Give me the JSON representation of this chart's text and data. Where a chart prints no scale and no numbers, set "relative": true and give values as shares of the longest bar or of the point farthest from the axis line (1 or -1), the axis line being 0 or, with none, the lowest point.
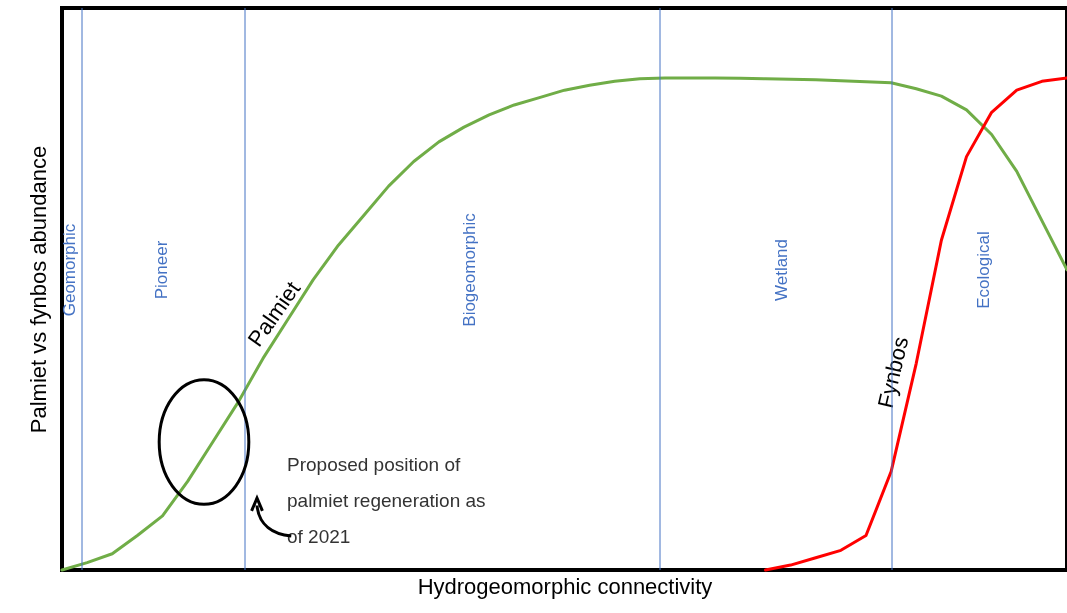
{
  "chart_data": {
    "type": "line",
    "relative": true,
    "xlabel": "Hydrogeomorphic connectivity",
    "ylabel": "Palmiet vs fynbos abundance",
    "tick_labels": false,
    "grid": false,
    "marker": "none",
    "line_style": "solid",
    "categories": [
      null,
      null,
      null,
      null,
      null,
      null,
      null,
      null,
      null,
      null,
      null,
      null,
      null,
      null,
      null,
      null,
      null,
      null,
      null,
      null,
      null,
      null,
      null,
      null,
      null,
      null,
      null,
      null,
      null,
      null,
      null,
      null,
      null,
      null,
      null,
      null,
      null,
      null,
      null,
      null,
      null
    ],
    "series": [
      {
        "name": "Palmiet",
        "color": "#70ad47",
        "values": [
          0,
          0.015,
          0.033,
          0.07,
          0.11,
          0.18,
          0.26,
          0.34,
          0.43,
          0.51,
          0.59,
          0.66,
          0.72,
          0.78,
          0.83,
          0.87,
          0.9,
          0.925,
          0.945,
          0.96,
          0.975,
          0.985,
          0.993,
          0.998,
          1,
          1,
          1,
          0.999,
          0.998,
          0.997,
          0.996,
          0.994,
          0.992,
          0.99,
          0.978,
          0.963,
          0.935,
          0.885,
          0.81,
          0.71,
          0.61
        ]
      },
      {
        "name": "Fynbos",
        "color": "#ff0000",
        "values": [
          null,
          null,
          null,
          null,
          null,
          null,
          null,
          null,
          null,
          null,
          null,
          null,
          null,
          null,
          null,
          null,
          null,
          null,
          null,
          null,
          null,
          null,
          null,
          null,
          null,
          null,
          null,
          null,
          0,
          0.01,
          0.025,
          0.04,
          0.07,
          0.2,
          0.42,
          0.67,
          0.84,
          0.93,
          0.975,
          0.993,
          1
        ]
      }
    ],
    "annotations": [
      "Geomorphic",
      "Pioneer",
      "Biogeomorphic",
      "Wetland",
      "Ecological",
      "Proposed position of palmiet regeneration as of 2021"
    ]
  }
}
